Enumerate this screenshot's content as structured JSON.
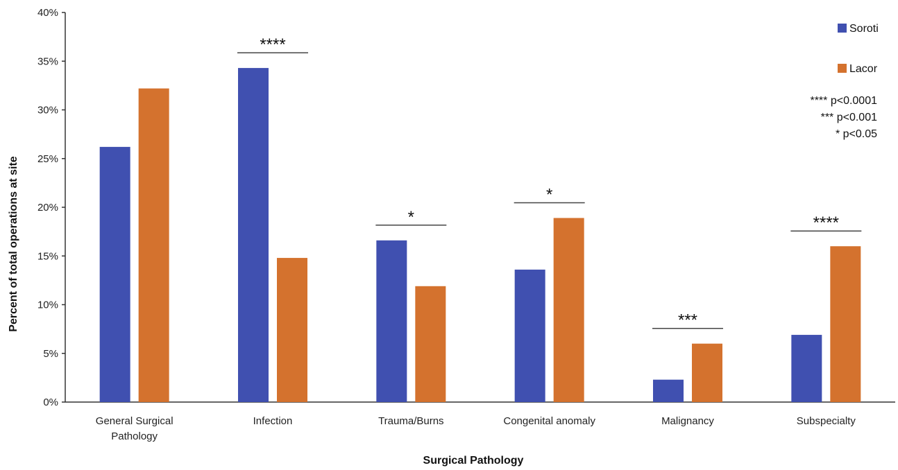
{
  "chart_data": {
    "type": "bar",
    "categories": [
      [
        "General Surgical",
        "Pathology"
      ],
      [
        "Infection"
      ],
      [
        "Trauma/Burns"
      ],
      [
        "Congenital anomaly"
      ],
      [
        "Malignancy"
      ],
      [
        "Subspecialty"
      ]
    ],
    "series": [
      {
        "name": "Soroti",
        "color": "#4050b0",
        "values": [
          26.2,
          34.3,
          16.6,
          13.6,
          2.3,
          6.9
        ]
      },
      {
        "name": "Lacor",
        "color": "#d4722e",
        "values": [
          32.2,
          14.8,
          11.9,
          18.9,
          6.0,
          16.0
        ]
      }
    ],
    "xlabel": "Surgical Pathology",
    "ylabel": "Percent of total operations at site",
    "ylim": [
      0,
      40
    ],
    "yticks": [
      "0%",
      "5%",
      "10%",
      "15%",
      "20%",
      "25%",
      "30%",
      "35%",
      "40%"
    ],
    "grid": false,
    "legend_position": "top-right",
    "significance": [
      "",
      "****",
      "*",
      "*",
      "***",
      "****"
    ],
    "significance_notes": [
      "**** p<0.0001",
      "*** p<0.001",
      "* p<0.05"
    ]
  }
}
